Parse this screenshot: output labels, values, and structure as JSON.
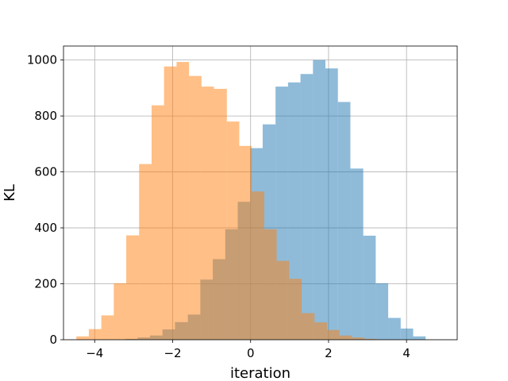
{
  "chart_data": {
    "type": "histogram",
    "title": "",
    "xlabel": "iteration",
    "ylabel": "KL",
    "xlim": [
      -4.8,
      5.3
    ],
    "ylim": [
      0,
      1050
    ],
    "grid": true,
    "xticks": [
      -4,
      -2,
      0,
      2,
      4
    ],
    "xtick_labels": [
      "−4",
      "−2",
      "0",
      "2",
      "4"
    ],
    "yticks": [
      0,
      200,
      400,
      600,
      800,
      1000
    ],
    "ytick_labels": [
      "0",
      "200",
      "400",
      "600",
      "800",
      "1000"
    ],
    "series": [
      {
        "color": "#1f77b4",
        "opacity": 0.5,
        "bins": [
          {
            "x0": -3.22,
            "x1": -2.9,
            "count": 3
          },
          {
            "x0": -2.9,
            "x1": -2.58,
            "count": 8
          },
          {
            "x0": -2.58,
            "x1": -2.26,
            "count": 15
          },
          {
            "x0": -2.26,
            "x1": -1.94,
            "count": 37
          },
          {
            "x0": -1.94,
            "x1": -1.61,
            "count": 63
          },
          {
            "x0": -1.61,
            "x1": -1.29,
            "count": 90
          },
          {
            "x0": -1.29,
            "x1": -0.97,
            "count": 215
          },
          {
            "x0": -0.97,
            "x1": -0.65,
            "count": 288
          },
          {
            "x0": -0.65,
            "x1": -0.33,
            "count": 395
          },
          {
            "x0": -0.33,
            "x1": -0.01,
            "count": 493
          },
          {
            "x0": -0.01,
            "x1": 0.31,
            "count": 685
          },
          {
            "x0": 0.31,
            "x1": 0.64,
            "count": 770
          },
          {
            "x0": 0.64,
            "x1": 0.96,
            "count": 905
          },
          {
            "x0": 0.96,
            "x1": 1.28,
            "count": 920
          },
          {
            "x0": 1.28,
            "x1": 1.6,
            "count": 950
          },
          {
            "x0": 1.6,
            "x1": 1.92,
            "count": 1000
          },
          {
            "x0": 1.92,
            "x1": 2.24,
            "count": 970
          },
          {
            "x0": 2.24,
            "x1": 2.56,
            "count": 850
          },
          {
            "x0": 2.56,
            "x1": 2.89,
            "count": 612
          },
          {
            "x0": 2.89,
            "x1": 3.21,
            "count": 372
          },
          {
            "x0": 3.21,
            "x1": 3.53,
            "count": 202
          },
          {
            "x0": 3.53,
            "x1": 3.85,
            "count": 78
          },
          {
            "x0": 3.85,
            "x1": 4.17,
            "count": 40
          },
          {
            "x0": 4.17,
            "x1": 4.49,
            "count": 12
          }
        ]
      },
      {
        "color": "#ff7f0e",
        "opacity": 0.5,
        "bins": [
          {
            "x0": -4.47,
            "x1": -4.15,
            "count": 12
          },
          {
            "x0": -4.15,
            "x1": -3.83,
            "count": 38
          },
          {
            "x0": -3.83,
            "x1": -3.51,
            "count": 87
          },
          {
            "x0": -3.51,
            "x1": -3.19,
            "count": 202
          },
          {
            "x0": -3.19,
            "x1": -2.86,
            "count": 373
          },
          {
            "x0": -2.86,
            "x1": -2.54,
            "count": 628
          },
          {
            "x0": -2.54,
            "x1": -2.22,
            "count": 838
          },
          {
            "x0": -2.22,
            "x1": -1.9,
            "count": 977
          },
          {
            "x0": -1.9,
            "x1": -1.58,
            "count": 993
          },
          {
            "x0": -1.58,
            "x1": -1.26,
            "count": 943
          },
          {
            "x0": -1.26,
            "x1": -0.94,
            "count": 905
          },
          {
            "x0": -0.94,
            "x1": -0.61,
            "count": 897
          },
          {
            "x0": -0.61,
            "x1": -0.29,
            "count": 780
          },
          {
            "x0": -0.29,
            "x1": 0.03,
            "count": 693
          },
          {
            "x0": 0.03,
            "x1": 0.35,
            "count": 530
          },
          {
            "x0": 0.35,
            "x1": 0.67,
            "count": 395
          },
          {
            "x0": 0.67,
            "x1": 0.99,
            "count": 282
          },
          {
            "x0": 0.99,
            "x1": 1.31,
            "count": 218
          },
          {
            "x0": 1.31,
            "x1": 1.64,
            "count": 95
          },
          {
            "x0": 1.64,
            "x1": 1.96,
            "count": 62
          },
          {
            "x0": 1.96,
            "x1": 2.28,
            "count": 35
          },
          {
            "x0": 2.28,
            "x1": 2.6,
            "count": 15
          },
          {
            "x0": 2.6,
            "x1": 2.92,
            "count": 8
          },
          {
            "x0": 2.92,
            "x1": 3.24,
            "count": 3
          }
        ]
      }
    ]
  }
}
